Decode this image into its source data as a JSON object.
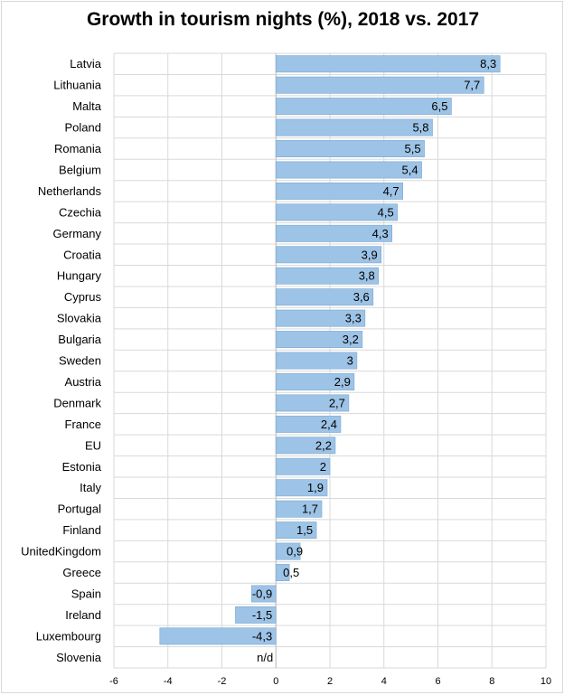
{
  "chart_data": {
    "type": "bar",
    "orientation": "horizontal",
    "title": "Growth in tourism nights (%), 2018 vs. 2017",
    "xlabel": "",
    "ylabel": "",
    "xlim": [
      -6,
      10
    ],
    "xticks": [
      -6,
      -4,
      -2,
      0,
      2,
      4,
      6,
      8,
      10
    ],
    "grid": true,
    "bar_color": "#9dc3e6",
    "bar_edge_color": "#7aa9d3",
    "grid_color": "#d9d9d9",
    "categories": [
      "Latvia",
      "Lithuania",
      "Malta",
      "Poland",
      "Romania",
      "Belgium",
      "Netherlands",
      "Czechia",
      "Germany",
      "Croatia",
      "Hungary",
      "Cyprus",
      "Slovakia",
      "Bulgaria",
      "Sweden",
      "Austria",
      "Denmark",
      "France",
      "EU",
      "Estonia",
      "Italy",
      "Portugal",
      "Finland",
      "UnitedKingdom",
      "Greece",
      "Spain",
      "Ireland",
      "Luxembourg",
      "Slovenia"
    ],
    "values": [
      8.3,
      7.7,
      6.5,
      5.8,
      5.5,
      5.4,
      4.7,
      4.5,
      4.3,
      3.9,
      3.8,
      3.6,
      3.3,
      3.2,
      3,
      2.9,
      2.7,
      2.4,
      2.2,
      2,
      1.9,
      1.7,
      1.5,
      0.9,
      0.5,
      -0.9,
      -1.5,
      -4.3,
      null
    ],
    "data_labels": [
      "8,3",
      "7,7",
      "6,5",
      "5,8",
      "5,5",
      "5,4",
      "4,7",
      "4,5",
      "4,3",
      "3,9",
      "3,8",
      "3,6",
      "3,3",
      "3,2",
      "3",
      "2,9",
      "2,7",
      "2,4",
      "2,2",
      "2",
      "1,9",
      "1,7",
      "1,5",
      "0,9",
      "0,5",
      "-0,9",
      "-1,5",
      "-4,3",
      "n/d"
    ]
  }
}
